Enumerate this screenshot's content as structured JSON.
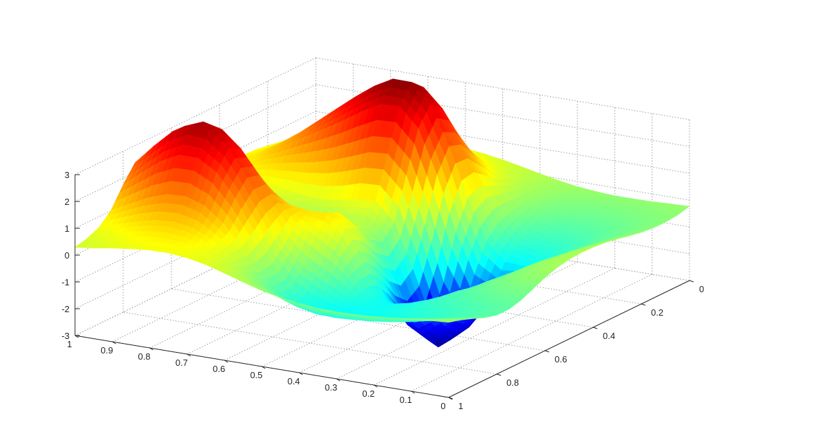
{
  "chart_data": {
    "type": "surface",
    "title": "",
    "xlabel": "",
    "ylabel": "",
    "zlabel": "",
    "x_axis": {
      "range": [
        0,
        1
      ],
      "ticks": [
        "0",
        "0.1",
        "0.2",
        "0.3",
        "0.4",
        "0.5",
        "0.6",
        "0.7",
        "0.8",
        "0.9",
        "1"
      ]
    },
    "y_axis": {
      "range": [
        0,
        1
      ],
      "ticks": [
        "0",
        "0.2",
        "0.4",
        "0.6",
        "0.8",
        "1"
      ]
    },
    "z_axis": {
      "range": [
        -3,
        3
      ],
      "ticks": [
        "-3",
        "-2",
        "-1",
        "0",
        "1",
        "2",
        "3"
      ]
    },
    "grid": true,
    "colormap": [
      "#00008f",
      "#0000ff",
      "#00ffff",
      "#80ff80",
      "#ffff00",
      "#ff8000",
      "#ff0000",
      "#800000"
    ],
    "surface": {
      "x_samples": [
        0.0,
        0.05,
        0.1,
        0.15,
        0.2,
        0.25,
        0.3,
        0.35,
        0.4,
        0.45,
        0.5,
        0.55,
        0.6,
        0.65,
        0.7,
        0.75,
        0.8,
        0.85,
        0.9,
        0.95,
        1.0
      ],
      "y_samples": [
        0.0,
        0.05,
        0.1,
        0.15,
        0.2,
        0.25,
        0.3,
        0.35,
        0.4,
        0.45,
        0.5,
        0.55,
        0.6,
        0.65,
        0.7,
        0.75,
        0.8,
        0.85,
        0.9,
        0.95,
        1.0
      ],
      "z_values": [
        [
          -0.23,
          -0.26,
          -0.29,
          -0.3,
          -0.3,
          -0.26,
          -0.19,
          -0.08,
          0.06,
          0.21,
          0.35,
          0.46,
          0.53,
          0.56,
          0.55,
          0.51,
          0.45,
          0.39,
          0.33,
          0.29,
          0.26
        ],
        [
          -0.34,
          -0.4,
          -0.44,
          -0.47,
          -0.47,
          -0.43,
          -0.33,
          -0.17,
          0.06,
          0.3,
          0.53,
          0.71,
          0.82,
          0.87,
          0.87,
          0.8,
          0.7,
          0.59,
          0.49,
          0.41,
          0.36
        ],
        [
          -0.39,
          -0.49,
          -0.58,
          -0.64,
          -0.65,
          -0.6,
          -0.47,
          -0.23,
          0.12,
          0.5,
          0.87,
          1.14,
          1.29,
          1.33,
          1.29,
          1.18,
          1.01,
          0.82,
          0.65,
          0.52,
          0.44
        ],
        [
          -0.38,
          -0.54,
          -0.69,
          -0.8,
          -0.86,
          -0.82,
          -0.64,
          -0.29,
          0.25,
          0.88,
          1.45,
          1.84,
          2.01,
          2.0,
          1.87,
          1.66,
          1.39,
          1.1,
          0.84,
          0.64,
          0.51
        ],
        [
          -0.33,
          -0.54,
          -0.77,
          -0.96,
          -1.07,
          -1.07,
          -0.88,
          -0.38,
          0.48,
          1.49,
          2.38,
          2.93,
          3.1,
          2.99,
          2.71,
          2.32,
          1.89,
          1.45,
          1.08,
          0.79,
          0.59
        ],
        [
          -0.24,
          -0.49,
          -0.8,
          -1.08,
          -1.3,
          -1.38,
          -1.21,
          -0.57,
          0.68,
          2.12,
          3.34,
          4.02,
          4.13,
          3.87,
          3.42,
          2.89,
          2.32,
          1.77,
          1.3,
          0.92,
          0.66
        ],
        [
          -0.14,
          -0.41,
          -0.77,
          -1.15,
          -1.49,
          -1.73,
          -1.7,
          -1.04,
          0.46,
          2.27,
          3.73,
          4.43,
          4.44,
          4.06,
          3.55,
          2.99,
          2.42,
          1.86,
          1.37,
          0.97,
          0.68
        ],
        [
          -0.06,
          -0.32,
          -0.7,
          -1.15,
          -1.62,
          -2.1,
          -2.4,
          -2.07,
          -0.6,
          1.41,
          3.04,
          3.75,
          3.72,
          3.34,
          2.89,
          2.47,
          2.06,
          1.65,
          1.26,
          0.92,
          0.66
        ],
        [
          -0.01,
          -0.24,
          -0.6,
          -1.09,
          -1.69,
          -2.4,
          -3.08,
          -3.31,
          -2.26,
          -0.24,
          1.5,
          2.2,
          2.14,
          1.86,
          1.6,
          1.42,
          1.29,
          1.15,
          0.97,
          0.77,
          0.58
        ],
        [
          0.0,
          -0.18,
          -0.51,
          -0.99,
          -1.66,
          -2.53,
          -3.47,
          -4.06,
          -3.45,
          -1.66,
          -0.02,
          0.65,
          0.62,
          0.45,
          0.38,
          0.44,
          0.56,
          0.64,
          0.64,
          0.56,
          0.46
        ],
        [
          -0.03,
          -0.17,
          -0.45,
          -0.89,
          -1.54,
          -2.42,
          -3.43,
          -4.11,
          -3.67,
          -2.06,
          -0.54,
          0.05,
          0.0,
          -0.14,
          -0.14,
          0.0,
          0.21,
          0.38,
          0.45,
          0.43,
          0.36
        ],
        [
          -0.12,
          -0.21,
          -0.43,
          -0.8,
          -1.34,
          -2.11,
          -2.99,
          -3.58,
          -3.18,
          -1.67,
          -0.23,
          0.3,
          0.2,
          0.03,
          0.05,
          0.24,
          0.46,
          0.63,
          0.68,
          0.63,
          0.52
        ],
        [
          -0.27,
          -0.32,
          -0.48,
          -0.74,
          -1.13,
          -1.7,
          -2.37,
          -2.78,
          -2.37,
          -0.96,
          0.39,
          0.87,
          0.74,
          0.58,
          0.67,
          0.97,
          1.29,
          1.49,
          1.49,
          1.3,
          1.03
        ],
        [
          -0.48,
          -0.51,
          -0.6,
          -0.77,
          -1.01,
          -1.36,
          -1.79,
          -2.04,
          -1.7,
          -0.51,
          0.62,
          1.06,
          1.05,
          1.15,
          1.57,
          2.14,
          2.64,
          2.88,
          2.77,
          2.37,
          1.84
        ],
        [
          -0.68,
          -0.72,
          -0.8,
          -0.91,
          -1.05,
          -1.25,
          -1.49,
          -1.63,
          -1.42,
          -0.71,
          0.02,
          0.43,
          0.79,
          1.45,
          2.36,
          3.24,
          3.84,
          4.01,
          3.73,
          3.14,
          2.42
        ],
        [
          -0.8,
          -0.88,
          -0.98,
          -1.1,
          -1.21,
          -1.34,
          -1.48,
          -1.58,
          -1.51,
          -1.21,
          -0.87,
          -0.49,
          0.23,
          1.28,
          2.48,
          3.46,
          4.05,
          4.12,
          3.75,
          3.09,
          2.36
        ],
        [
          -0.8,
          -0.92,
          -1.06,
          -1.21,
          -1.34,
          -1.45,
          -1.56,
          -1.64,
          -1.67,
          -1.65,
          -1.51,
          -1.08,
          -0.27,
          0.83,
          1.95,
          2.79,
          3.21,
          3.21,
          2.86,
          2.32,
          1.75
        ],
        [
          -0.68,
          -0.81,
          -0.97,
          -1.14,
          -1.29,
          -1.41,
          -1.5,
          -1.56,
          -1.6,
          -1.58,
          -1.44,
          -1.04,
          -0.37,
          0.45,
          1.22,
          1.77,
          2.0,
          1.96,
          1.72,
          1.37,
          1.02
        ],
        [
          -0.5,
          -0.61,
          -0.75,
          -0.9,
          -1.04,
          -1.15,
          -1.22,
          -1.25,
          -1.25,
          -1.18,
          -1.0,
          -0.66,
          -0.18,
          0.37,
          0.85,
          1.16,
          1.27,
          1.21,
          1.04,
          0.82,
          0.6
        ],
        [
          -0.33,
          -0.41,
          -0.52,
          -0.63,
          -0.73,
          -0.81,
          -0.85,
          -0.85,
          -0.81,
          -0.71,
          -0.53,
          -0.26,
          0.08,
          0.42,
          0.7,
          0.86,
          0.89,
          0.82,
          0.69,
          0.54,
          0.4
        ],
        [
          -0.2,
          -0.25,
          -0.32,
          -0.39,
          -0.45,
          -0.49,
          -0.5,
          -0.48,
          -0.42,
          -0.32,
          -0.17,
          0.03,
          0.25,
          0.45,
          0.59,
          0.66,
          0.65,
          0.58,
          0.49,
          0.38,
          0.29
        ]
      ]
    }
  }
}
